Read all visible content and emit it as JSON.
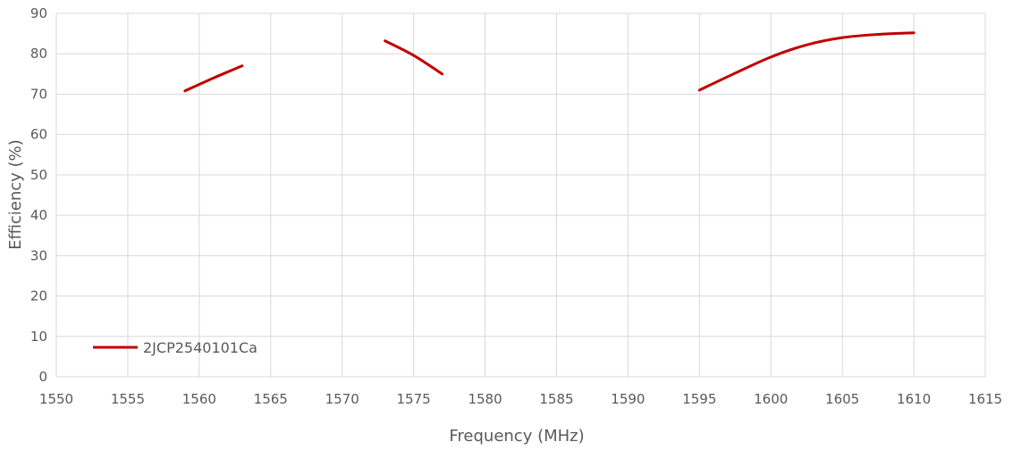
{
  "chart_data": {
    "type": "line",
    "xlabel": "Frequency (MHz)",
    "ylabel": "Efficiency (%)",
    "xlim": [
      1550,
      1615
    ],
    "ylim": [
      0,
      90
    ],
    "x_ticks": [
      1550,
      1555,
      1560,
      1565,
      1570,
      1575,
      1580,
      1585,
      1590,
      1595,
      1600,
      1605,
      1610,
      1615
    ],
    "y_ticks": [
      0,
      10,
      20,
      30,
      40,
      50,
      60,
      70,
      80,
      90
    ],
    "grid": true,
    "legend_position": "bottom-left",
    "series": [
      {
        "name": "2JCP2540101Ca",
        "color": "#c00000",
        "segments": [
          [
            [
              1559,
              70.8
            ],
            [
              1561,
              74.0
            ],
            [
              1563,
              77.0
            ]
          ],
          [
            [
              1573,
              83.2
            ],
            [
              1575,
              79.6
            ],
            [
              1577,
              75.0
            ]
          ],
          [
            [
              1595,
              71.0
            ],
            [
              1597.5,
              75.2
            ],
            [
              1600,
              79.2
            ],
            [
              1602.5,
              82.2
            ],
            [
              1605,
              84.0
            ],
            [
              1607.5,
              84.8
            ],
            [
              1610,
              85.2
            ]
          ]
        ]
      }
    ]
  }
}
